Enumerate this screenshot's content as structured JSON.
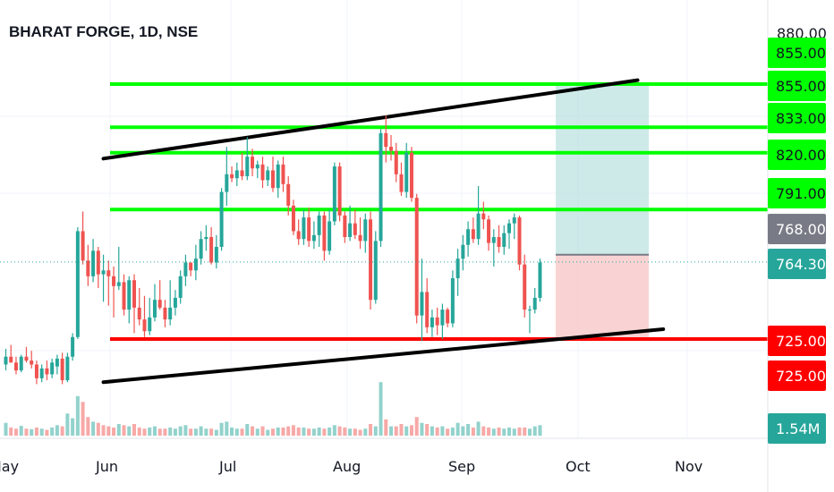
{
  "header": {
    "title": "BHARAT FORGE, 1D, NSE"
  },
  "price_axis": {
    "top_tick": "880.00"
  },
  "time_axis": {
    "labels": [
      "May",
      "Jun",
      "Jul",
      "Aug",
      "Sep",
      "Oct",
      "Nov"
    ]
  },
  "colors": {
    "up": "#26a69a",
    "down": "#ef5350",
    "green_line": "#00ff00",
    "red_line": "#ff0000",
    "trend_line": "#000000",
    "target_zone": "#b2dfdb",
    "stop_zone": "#f8c8c8",
    "last_price_bg": "#26a69a",
    "entry_price_bg": "#787b86"
  },
  "chart_data": {
    "type": "candlestick",
    "symbol": "BHARAT FORGE",
    "interval": "1D",
    "exchange": "NSE",
    "x_labels": [
      "May",
      "Jun",
      "Jul",
      "Aug",
      "Sep",
      "Oct",
      "Nov"
    ],
    "y_range": [
      695,
      882
    ],
    "horizontal_levels": [
      {
        "label": "855.00",
        "value": 855.0,
        "color": "#00ff00"
      },
      {
        "label": "855.00",
        "value": 855.0,
        "color": "#00ff00"
      },
      {
        "label": "833.00",
        "value": 833.0,
        "color": "#00ff00"
      },
      {
        "label": "820.00",
        "value": 820.0,
        "color": "#00ff00"
      },
      {
        "label": "791.00",
        "value": 791.0,
        "color": "#00ff00"
      },
      {
        "label": "725.00",
        "value": 725.0,
        "color": "#ff0000"
      },
      {
        "label": "725.00",
        "value": 725.0,
        "color": "#ff0000"
      }
    ],
    "position": {
      "entry": 768.0,
      "entry_label": "768.00",
      "target": 855.0,
      "stop": 725.0
    },
    "last_price": {
      "label": "764.30",
      "value": 764.3
    },
    "volume_label": "1.54M",
    "trend_lines": [
      {
        "name": "upper-channel",
        "points": [
          [
            19,
            817
          ],
          [
            123,
            857
          ]
        ]
      },
      {
        "name": "lower-channel",
        "points": [
          [
            19,
            703
          ],
          [
            128,
            730
          ]
        ]
      }
    ],
    "candles": [
      [
        0,
        712,
        720,
        709,
        716
      ],
      [
        1,
        716,
        722,
        713,
        713
      ],
      [
        2,
        713,
        716,
        707,
        709
      ],
      [
        3,
        709,
        717,
        708,
        716
      ],
      [
        4,
        716,
        721,
        713,
        714
      ],
      [
        5,
        714,
        719,
        710,
        712
      ],
      [
        6,
        712,
        714,
        702,
        705
      ],
      [
        7,
        705,
        712,
        703,
        710
      ],
      [
        8,
        710,
        714,
        704,
        707
      ],
      [
        9,
        707,
        715,
        705,
        713
      ],
      [
        10,
        711,
        717,
        707,
        715
      ],
      [
        11,
        715,
        718,
        702,
        704
      ],
      [
        12,
        704,
        718,
        703,
        716
      ],
      [
        13,
        716,
        728,
        714,
        726
      ],
      [
        14,
        726,
        782,
        725,
        780
      ],
      [
        15,
        780,
        790,
        763,
        765
      ],
      [
        16,
        765,
        773,
        752,
        757
      ],
      [
        17,
        757,
        776,
        754,
        770
      ],
      [
        18,
        770,
        772,
        751,
        758
      ],
      [
        19,
        758,
        768,
        744,
        760
      ],
      [
        20,
        760,
        765,
        742,
        757
      ],
      [
        21,
        757,
        762,
        736,
        752
      ],
      [
        22,
        752,
        772,
        750,
        754
      ],
      [
        23,
        754,
        758,
        737,
        740
      ],
      [
        24,
        740,
        757,
        733,
        755
      ],
      [
        25,
        755,
        758,
        728,
        741
      ],
      [
        26,
        741,
        751,
        732,
        735
      ],
      [
        27,
        735,
        747,
        726,
        729
      ],
      [
        28,
        729,
        746,
        727,
        736
      ],
      [
        29,
        736,
        753,
        734,
        745
      ],
      [
        30,
        745,
        755,
        740,
        741
      ],
      [
        31,
        741,
        745,
        731,
        735
      ],
      [
        32,
        735,
        755,
        732,
        741
      ],
      [
        33,
        741,
        750,
        737,
        746
      ],
      [
        34,
        746,
        760,
        743,
        757
      ],
      [
        35,
        757,
        768,
        752,
        764
      ],
      [
        36,
        764,
        764,
        757,
        760
      ],
      [
        37,
        760,
        773,
        755,
        766
      ],
      [
        38,
        766,
        780,
        763,
        776
      ],
      [
        39,
        776,
        783,
        770,
        777
      ],
      [
        40,
        777,
        782,
        763,
        764
      ],
      [
        41,
        764,
        778,
        761,
        772
      ],
      [
        42,
        772,
        802,
        770,
        800
      ],
      [
        43,
        800,
        823,
        793,
        809
      ],
      [
        44,
        809,
        813,
        805,
        807
      ],
      [
        45,
        807,
        815,
        803,
        811
      ],
      [
        46,
        811,
        820,
        806,
        808
      ],
      [
        47,
        808,
        828,
        806,
        818
      ],
      [
        48,
        818,
        822,
        808,
        812
      ],
      [
        49,
        812,
        816,
        807,
        814
      ],
      [
        50,
        814,
        818,
        802,
        806
      ],
      [
        51,
        806,
        813,
        803,
        811
      ],
      [
        52,
        811,
        818,
        800,
        802
      ],
      [
        53,
        802,
        816,
        797,
        814
      ],
      [
        54,
        814,
        818,
        800,
        804
      ],
      [
        55,
        804,
        808,
        788,
        793
      ],
      [
        56,
        793,
        796,
        778,
        780
      ],
      [
        57,
        780,
        786,
        773,
        776
      ],
      [
        58,
        776,
        791,
        773,
        787
      ],
      [
        59,
        787,
        792,
        772,
        775
      ],
      [
        60,
        775,
        785,
        771,
        778
      ],
      [
        61,
        778,
        790,
        772,
        788
      ],
      [
        62,
        788,
        790,
        765,
        770
      ],
      [
        63,
        770,
        791,
        768,
        785
      ],
      [
        64,
        785,
        815,
        783,
        813
      ],
      [
        65,
        813,
        815,
        785,
        788
      ],
      [
        66,
        788,
        790,
        774,
        777
      ],
      [
        67,
        777,
        793,
        775,
        784
      ],
      [
        68,
        784,
        791,
        776,
        778
      ],
      [
        69,
        778,
        787,
        771,
        775
      ],
      [
        70,
        775,
        789,
        769,
        786
      ],
      [
        71,
        786,
        790,
        740,
        745
      ],
      [
        72,
        745,
        780,
        743,
        775
      ],
      [
        73,
        775,
        832,
        772,
        830
      ],
      [
        74,
        830,
        839,
        815,
        823
      ],
      [
        75,
        823,
        829,
        816,
        821
      ],
      [
        76,
        821,
        825,
        805,
        809
      ],
      [
        77,
        809,
        815,
        798,
        800
      ],
      [
        78,
        800,
        825,
        797,
        820
      ],
      [
        79,
        820,
        823,
        795,
        797
      ],
      [
        80,
        797,
        799,
        733,
        737
      ],
      [
        81,
        737,
        766,
        724,
        749
      ],
      [
        82,
        749,
        756,
        728,
        731
      ],
      [
        83,
        731,
        740,
        726,
        736
      ],
      [
        84,
        736,
        741,
        727,
        732
      ],
      [
        85,
        732,
        743,
        725,
        740
      ],
      [
        86,
        740,
        741,
        731,
        733
      ],
      [
        87,
        733,
        760,
        731,
        756
      ],
      [
        88,
        756,
        771,
        747,
        766
      ],
      [
        89,
        766,
        778,
        760,
        773
      ],
      [
        90,
        773,
        785,
        767,
        781
      ],
      [
        91,
        781,
        787,
        774,
        776
      ],
      [
        92,
        776,
        803,
        773,
        789
      ],
      [
        93,
        789,
        795,
        781,
        786
      ],
      [
        94,
        786,
        788,
        770,
        774
      ],
      [
        95,
        774,
        781,
        762,
        777
      ],
      [
        96,
        777,
        783,
        769,
        772
      ],
      [
        97,
        772,
        783,
        768,
        779
      ],
      [
        98,
        779,
        786,
        771,
        784
      ],
      [
        99,
        784,
        789,
        776,
        787
      ],
      [
        100,
        787,
        788,
        760,
        763
      ],
      [
        101,
        763,
        768,
        736,
        740
      ],
      [
        102,
        740,
        742,
        728,
        740
      ],
      [
        103,
        740,
        751,
        738,
        746
      ],
      [
        104,
        746,
        766,
        744,
        764
      ]
    ],
    "volumes": [
      [
        0,
        0.55,
        1
      ],
      [
        1,
        0.35,
        0
      ],
      [
        2,
        0.3,
        0
      ],
      [
        3,
        0.42,
        1
      ],
      [
        4,
        0.3,
        0
      ],
      [
        5,
        0.28,
        1
      ],
      [
        6,
        0.35,
        0
      ],
      [
        7,
        0.3,
        1
      ],
      [
        8,
        0.25,
        0
      ],
      [
        9,
        0.35,
        1
      ],
      [
        10,
        0.45,
        1
      ],
      [
        11,
        0.4,
        0
      ],
      [
        12,
        0.95,
        1
      ],
      [
        13,
        0.75,
        1
      ],
      [
        14,
        1.7,
        1
      ],
      [
        15,
        1.45,
        0
      ],
      [
        16,
        0.8,
        0
      ],
      [
        17,
        0.6,
        1
      ],
      [
        18,
        0.55,
        0
      ],
      [
        19,
        0.45,
        0
      ],
      [
        20,
        0.4,
        0
      ],
      [
        21,
        0.35,
        0
      ],
      [
        22,
        0.5,
        1
      ],
      [
        23,
        0.45,
        0
      ],
      [
        24,
        0.4,
        1
      ],
      [
        25,
        0.5,
        0
      ],
      [
        26,
        0.35,
        0
      ],
      [
        27,
        0.3,
        0
      ],
      [
        28,
        0.35,
        1
      ],
      [
        29,
        0.4,
        1
      ],
      [
        30,
        0.3,
        0
      ],
      [
        31,
        0.3,
        0
      ],
      [
        32,
        0.35,
        1
      ],
      [
        33,
        0.3,
        1
      ],
      [
        34,
        0.4,
        1
      ],
      [
        35,
        0.45,
        1
      ],
      [
        36,
        0.3,
        0
      ],
      [
        37,
        0.3,
        1
      ],
      [
        38,
        0.4,
        1
      ],
      [
        39,
        0.3,
        1
      ],
      [
        40,
        0.3,
        0
      ],
      [
        41,
        0.25,
        1
      ],
      [
        42,
        0.55,
        1
      ],
      [
        43,
        0.6,
        1
      ],
      [
        44,
        0.35,
        1
      ],
      [
        45,
        0.3,
        1
      ],
      [
        46,
        0.3,
        0
      ],
      [
        47,
        0.5,
        1
      ],
      [
        48,
        0.4,
        0
      ],
      [
        49,
        0.3,
        1
      ],
      [
        50,
        0.4,
        0
      ],
      [
        51,
        0.25,
        1
      ],
      [
        52,
        0.3,
        0
      ],
      [
        53,
        0.35,
        1
      ],
      [
        54,
        0.35,
        0
      ],
      [
        55,
        0.4,
        0
      ],
      [
        56,
        0.45,
        0
      ],
      [
        57,
        0.35,
        0
      ],
      [
        58,
        0.35,
        1
      ],
      [
        59,
        0.3,
        0
      ],
      [
        60,
        0.3,
        1
      ],
      [
        61,
        0.35,
        1
      ],
      [
        62,
        0.3,
        0
      ],
      [
        63,
        0.35,
        1
      ],
      [
        64,
        0.45,
        1
      ],
      [
        65,
        0.4,
        0
      ],
      [
        66,
        0.35,
        0
      ],
      [
        67,
        0.3,
        1
      ],
      [
        68,
        0.3,
        0
      ],
      [
        69,
        0.25,
        0
      ],
      [
        70,
        0.3,
        1
      ],
      [
        71,
        0.5,
        0
      ],
      [
        72,
        0.4,
        1
      ],
      [
        73,
        2.3,
        1
      ],
      [
        74,
        0.7,
        0
      ],
      [
        75,
        0.4,
        1
      ],
      [
        76,
        0.4,
        0
      ],
      [
        77,
        0.5,
        0
      ],
      [
        78,
        0.4,
        1
      ],
      [
        79,
        0.45,
        0
      ],
      [
        80,
        0.8,
        0
      ],
      [
        81,
        0.55,
        1
      ],
      [
        82,
        0.5,
        0
      ],
      [
        83,
        0.4,
        1
      ],
      [
        84,
        0.35,
        0
      ],
      [
        85,
        0.4,
        1
      ],
      [
        86,
        0.3,
        0
      ],
      [
        87,
        0.35,
        1
      ],
      [
        88,
        0.55,
        1
      ],
      [
        89,
        0.4,
        1
      ],
      [
        90,
        0.5,
        1
      ],
      [
        91,
        0.35,
        0
      ],
      [
        92,
        0.6,
        1
      ],
      [
        93,
        0.4,
        0
      ],
      [
        94,
        0.35,
        0
      ],
      [
        95,
        0.3,
        1
      ],
      [
        96,
        0.35,
        0
      ],
      [
        97,
        0.3,
        1
      ],
      [
        98,
        0.35,
        1
      ],
      [
        99,
        0.3,
        1
      ],
      [
        100,
        0.35,
        0
      ],
      [
        101,
        0.35,
        0
      ],
      [
        102,
        0.3,
        1
      ],
      [
        103,
        0.4,
        1
      ],
      [
        104,
        0.45,
        1
      ]
    ]
  }
}
